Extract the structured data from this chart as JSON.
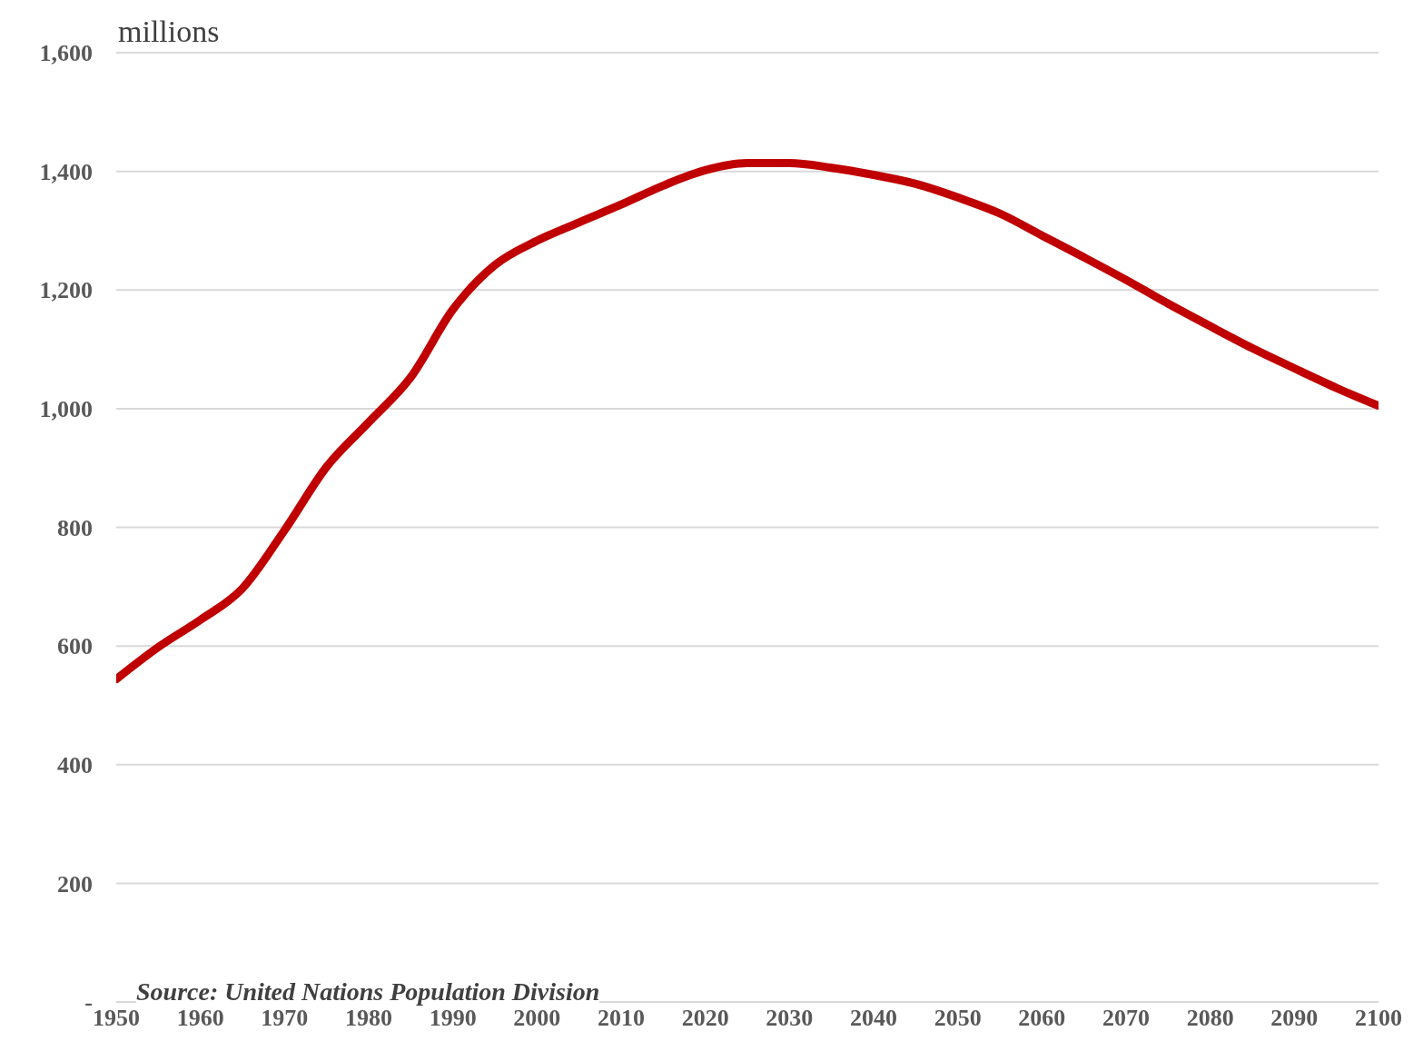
{
  "chart_data": {
    "type": "line",
    "ylabel": "millions",
    "annotations": [
      "Source: United Nations Population Division"
    ],
    "x": [
      1950,
      1955,
      1960,
      1965,
      1970,
      1975,
      1980,
      1985,
      1990,
      1995,
      2000,
      2005,
      2010,
      2015,
      2020,
      2025,
      2030,
      2035,
      2040,
      2045,
      2050,
      2055,
      2060,
      2065,
      2070,
      2075,
      2080,
      2085,
      2090,
      2095,
      2100
    ],
    "series": [
      {
        "color": "#c00000",
        "values": [
          544,
          598,
          644,
          697,
          795,
          902,
          977,
          1053,
          1167,
          1242,
          1283,
          1314,
          1344,
          1376,
          1402,
          1414,
          1414,
          1406,
          1394,
          1379,
          1356,
          1329,
          1292,
          1255,
          1217,
          1177,
          1139,
          1102,
          1068,
          1035,
          1005
        ]
      }
    ],
    "xlim": [
      1950,
      2100
    ],
    "xticks": [
      1950,
      1960,
      1970,
      1980,
      1990,
      2000,
      2010,
      2020,
      2030,
      2040,
      2050,
      2060,
      2070,
      2080,
      2090,
      2100
    ],
    "ylim": [
      0,
      1600
    ],
    "yticks": [
      {
        "value": 0,
        "label": "-"
      },
      200,
      400,
      600,
      800,
      {
        "value": 1000,
        "label": "1,000"
      },
      {
        "value": 1200,
        "label": "1,200"
      },
      {
        "value": 1400,
        "label": "1,400"
      },
      {
        "value": 1600,
        "label": "1,600"
      }
    ],
    "grid": "y",
    "legend": false,
    "marker": "none",
    "line_style": "solid"
  }
}
